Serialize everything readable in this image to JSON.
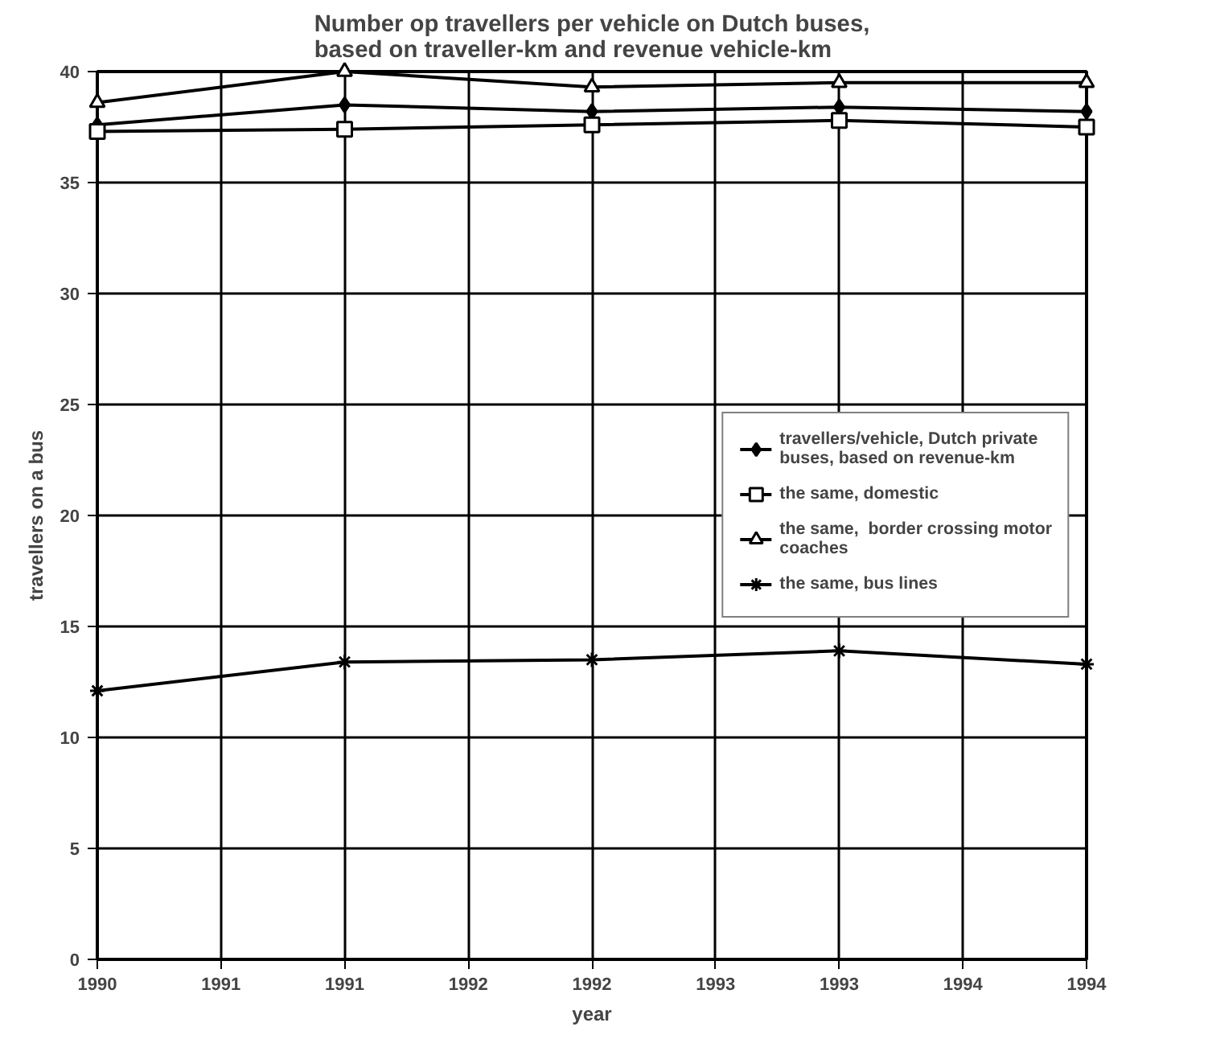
{
  "chart_data": {
    "type": "line",
    "title": "Number op travellers per vehicle on Dutch buses, based on traveller-km and revenue vehicle-km",
    "xlabel": "year",
    "ylabel": "travellers on a bus",
    "x": [
      1990,
      1991,
      1992,
      1993,
      1994
    ],
    "series": [
      {
        "name": "travellers/vehicle, Dutch private buses, based on revenue-km",
        "color": "#000000",
        "marker": "diamond",
        "values": [
          37.6,
          38.5,
          38.2,
          38.4,
          38.2
        ]
      },
      {
        "name": "the same, domestic",
        "color": "#000000",
        "marker": "square",
        "values": [
          37.3,
          37.4,
          37.6,
          37.8,
          37.5
        ]
      },
      {
        "name": "the same,  border crossing motor coaches",
        "color": "#000000",
        "marker": "triangle",
        "values": [
          38.6,
          40,
          39.3,
          39.5,
          39.5
        ]
      },
      {
        "name": "the same, bus lines",
        "color": "#000000",
        "marker": "cross",
        "values": [
          12.1,
          13.4,
          13.5,
          13.9,
          13.3
        ]
      }
    ],
    "xlim": [
      1990,
      1994
    ],
    "xticks": [
      1990,
      {
        "value": 1990.5,
        "label": "1991"
      },
      1991,
      {
        "value": 1991.5,
        "label": "1992"
      },
      1992,
      {
        "value": 1992.5,
        "label": "1993"
      },
      1993,
      {
        "value": 1993.5,
        "label": "1994"
      },
      1994
    ],
    "ylim": [
      0,
      40
    ],
    "yticks": [
      0,
      5,
      10,
      15,
      20,
      25,
      30,
      35,
      40
    ],
    "grid": true,
    "legend": "right",
    "line_style": "solid"
  }
}
